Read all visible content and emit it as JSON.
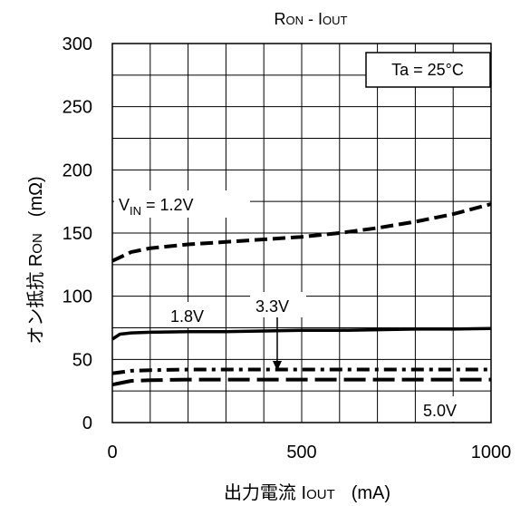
{
  "chart_data": {
    "type": "line",
    "title_main": "R",
    "title_main_sub": "ON",
    "title_sep": " - I",
    "title_sep_sub": "OUT",
    "xlabel_main": "出力電流 I",
    "xlabel_sub": "OUT",
    "xlabel_unit": "(mA)",
    "ylabel_main": "オン抵抗 R",
    "ylabel_sub": "ON",
    "ylabel_unit": "(mΩ)",
    "xlim": [
      0,
      1000
    ],
    "ylim": [
      0,
      300
    ],
    "x_tick_labels": [
      "0",
      "500",
      "1000"
    ],
    "y_tick_labels": [
      "0",
      "50",
      "100",
      "150",
      "200",
      "250",
      "300"
    ],
    "grid": true,
    "condition_box": "Ta = 25°C",
    "series": [
      {
        "name": "V",
        "name_sub": "IN",
        "name_rest": " = 1.2V",
        "style": "dashed",
        "x": [
          0,
          50,
          100,
          200,
          300,
          400,
          500,
          600,
          700,
          800,
          900,
          1000
        ],
        "y": [
          128,
          135,
          138,
          141,
          143,
          145,
          147,
          150,
          154,
          159,
          165,
          173
        ]
      },
      {
        "name": "1.8V",
        "style": "solid",
        "x": [
          0,
          20,
          50,
          100,
          200,
          300,
          400,
          500,
          600,
          700,
          800,
          900,
          1000
        ],
        "y": [
          66,
          70,
          71,
          71.5,
          72,
          72,
          72.5,
          73,
          73,
          73.5,
          74,
          74,
          74.5
        ]
      },
      {
        "name": "3.3V",
        "style": "dash-dot",
        "x": [
          0,
          50,
          100,
          200,
          300,
          400,
          500,
          600,
          700,
          800,
          900,
          1000
        ],
        "y": [
          39,
          41,
          41.5,
          42,
          42,
          42,
          42,
          42,
          42,
          42,
          42,
          42
        ]
      },
      {
        "name": "5.0V",
        "style": "long-dash",
        "x": [
          0,
          50,
          100,
          200,
          300,
          400,
          500,
          600,
          700,
          800,
          900,
          1000
        ],
        "y": [
          30,
          33,
          33.5,
          34,
          34,
          34,
          34,
          34,
          34,
          34,
          34,
          34
        ]
      }
    ]
  }
}
